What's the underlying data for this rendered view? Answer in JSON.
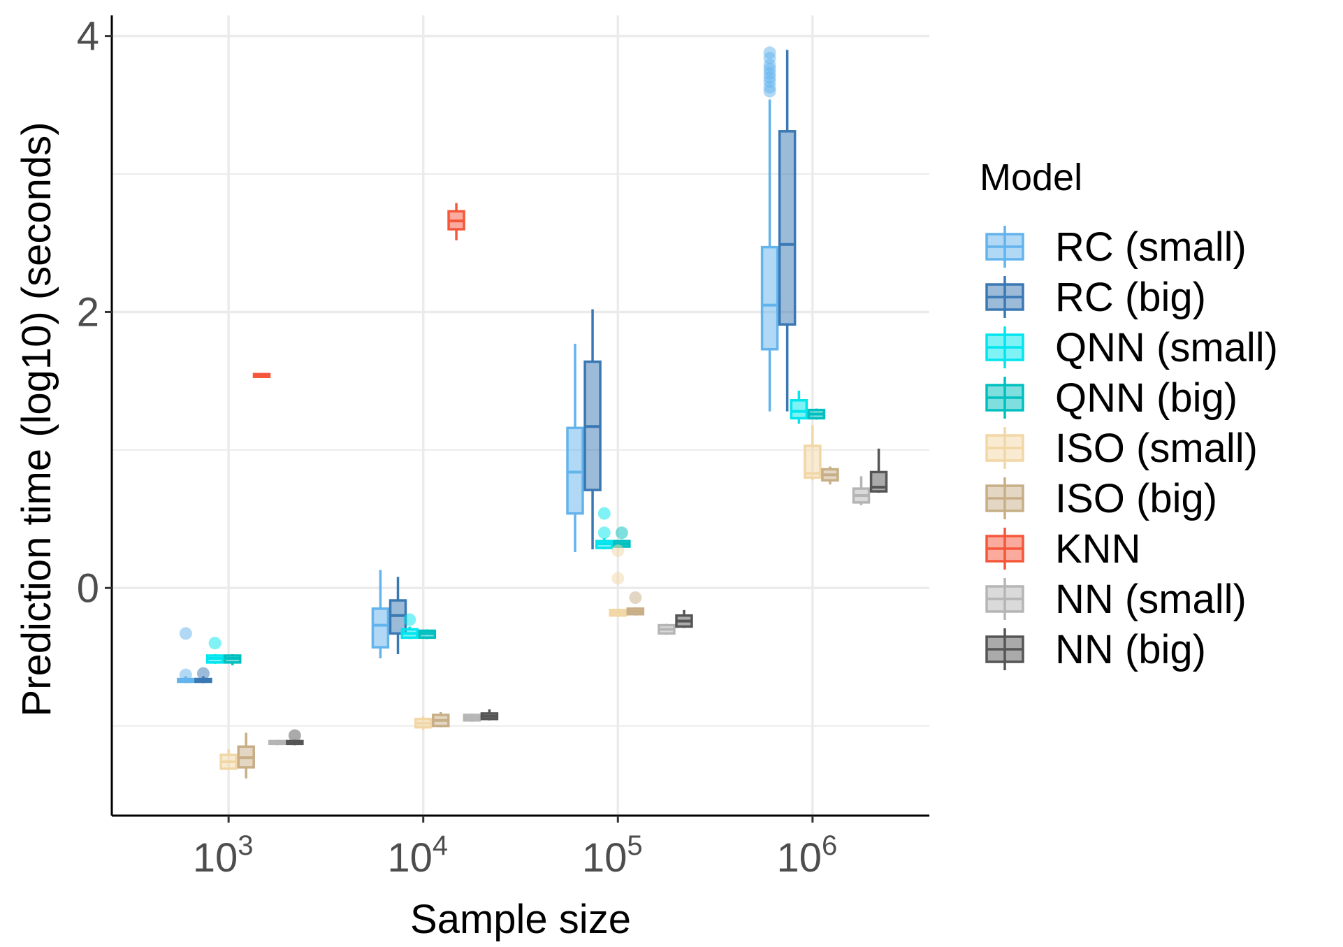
{
  "chart_data": {
    "type": "boxplot",
    "title": "",
    "xlabel": "Sample size",
    "ylabel": "Prediction time (log10) (seconds)",
    "x_scale": "log10",
    "x_ticks": [
      {
        "value": 1000,
        "base": "10",
        "exp": "3"
      },
      {
        "value": 10000,
        "base": "10",
        "exp": "4"
      },
      {
        "value": 100000,
        "base": "10",
        "exp": "5"
      },
      {
        "value": 1000000,
        "base": "10",
        "exp": "6"
      }
    ],
    "xlim_log10": [
      2.4,
      6.6
    ],
    "ylim": [
      -1.65,
      4.15
    ],
    "y_ticks": [
      {
        "value": 0,
        "label": "0"
      },
      {
        "value": 2,
        "label": "2"
      },
      {
        "value": 4,
        "label": "4"
      }
    ],
    "y_minor_gridlines": [
      -1,
      1,
      3
    ],
    "grid": true,
    "legend": {
      "title": "Model",
      "position": "right",
      "entries": [
        {
          "name": "RC (small)",
          "color": "#63B3ED"
        },
        {
          "name": "RC (big)",
          "color": "#3A78B4"
        },
        {
          "name": "QNN (small)",
          "color": "#00E5EE"
        },
        {
          "name": "QNN (big)",
          "color": "#00BFBF"
        },
        {
          "name": "ISO (small)",
          "color": "#F2D7A6"
        },
        {
          "name": "ISO (big)",
          "color": "#C7AE86"
        },
        {
          "name": "KNN",
          "color": "#F5573B"
        },
        {
          "name": "NN (small)",
          "color": "#B5B5B5"
        },
        {
          "name": "NN (big)",
          "color": "#555555"
        }
      ]
    },
    "boxes": [
      {
        "model": "RC (small)",
        "x_log10": 2.78,
        "q1": -0.68,
        "median": -0.67,
        "q3": -0.66,
        "whisker_low": -0.69,
        "whisker_high": -0.64,
        "outliers": [
          -0.33,
          -0.63
        ]
      },
      {
        "model": "RC (big)",
        "x_log10": 2.87,
        "q1": -0.68,
        "median": -0.67,
        "q3": -0.66,
        "whisker_low": -0.69,
        "whisker_high": -0.64,
        "outliers": [
          -0.62
        ]
      },
      {
        "model": "QNN (small)",
        "x_log10": 2.93,
        "q1": -0.54,
        "median": -0.51,
        "q3": -0.49,
        "whisker_low": -0.55,
        "whisker_high": -0.48,
        "outliers": [
          -0.4
        ]
      },
      {
        "model": "QNN (big)",
        "x_log10": 3.02,
        "q1": -0.54,
        "median": -0.51,
        "q3": -0.49,
        "whisker_low": -0.56,
        "whisker_high": -0.48,
        "outliers": []
      },
      {
        "model": "ISO (small)",
        "x_log10": 3.0,
        "q1": -1.31,
        "median": -1.26,
        "q3": -1.21,
        "whisker_low": -1.32,
        "whisker_high": -1.17,
        "outliers": []
      },
      {
        "model": "ISO (big)",
        "x_log10": 3.09,
        "q1": -1.3,
        "median": -1.23,
        "q3": -1.15,
        "whisker_low": -1.38,
        "whisker_high": -1.05,
        "outliers": []
      },
      {
        "model": "KNN",
        "x_log10": 3.17,
        "q1": 1.53,
        "median": 1.54,
        "q3": 1.55,
        "whisker_low": 1.53,
        "whisker_high": 1.55,
        "outliers": []
      },
      {
        "model": "NN (small)",
        "x_log10": 3.25,
        "q1": -1.13,
        "median": -1.12,
        "q3": -1.11,
        "whisker_low": -1.14,
        "whisker_high": -1.1,
        "outliers": []
      },
      {
        "model": "NN (big)",
        "x_log10": 3.34,
        "q1": -1.13,
        "median": -1.12,
        "q3": -1.11,
        "whisker_low": -1.14,
        "whisker_high": -1.1,
        "outliers": [
          -1.07
        ]
      },
      {
        "model": "RC (small)",
        "x_log10": 3.78,
        "q1": -0.43,
        "median": -0.27,
        "q3": -0.15,
        "whisker_low": -0.51,
        "whisker_high": 0.13,
        "outliers": []
      },
      {
        "model": "RC (big)",
        "x_log10": 3.87,
        "q1": -0.33,
        "median": -0.2,
        "q3": -0.09,
        "whisker_low": -0.48,
        "whisker_high": 0.08,
        "outliers": []
      },
      {
        "model": "QNN (small)",
        "x_log10": 3.93,
        "q1": -0.36,
        "median": -0.33,
        "q3": -0.3,
        "whisker_low": -0.37,
        "whisker_high": -0.28,
        "outliers": [
          -0.23
        ]
      },
      {
        "model": "QNN (big)",
        "x_log10": 4.02,
        "q1": -0.36,
        "median": -0.33,
        "q3": -0.31,
        "whisker_low": -0.37,
        "whisker_high": -0.3,
        "outliers": []
      },
      {
        "model": "ISO (small)",
        "x_log10": 4.0,
        "q1": -1.01,
        "median": -0.98,
        "q3": -0.95,
        "whisker_low": -1.03,
        "whisker_high": -0.93,
        "outliers": []
      },
      {
        "model": "ISO (big)",
        "x_log10": 4.09,
        "q1": -1.0,
        "median": -0.96,
        "q3": -0.92,
        "whisker_low": -1.01,
        "whisker_high": -0.9,
        "outliers": []
      },
      {
        "model": "KNN",
        "x_log10": 4.17,
        "q1": 2.6,
        "median": 2.66,
        "q3": 2.73,
        "whisker_low": 2.52,
        "whisker_high": 2.79,
        "outliers": []
      },
      {
        "model": "NN (small)",
        "x_log10": 4.25,
        "q1": -0.96,
        "median": -0.94,
        "q3": -0.92,
        "whisker_low": -0.97,
        "whisker_high": -0.91,
        "outliers": []
      },
      {
        "model": "NN (big)",
        "x_log10": 4.34,
        "q1": -0.95,
        "median": -0.93,
        "q3": -0.91,
        "whisker_low": -0.96,
        "whisker_high": -0.88,
        "outliers": []
      },
      {
        "model": "RC (small)",
        "x_log10": 4.78,
        "q1": 0.54,
        "median": 0.84,
        "q3": 1.16,
        "whisker_low": 0.26,
        "whisker_high": 1.77,
        "outliers": []
      },
      {
        "model": "RC (big)",
        "x_log10": 4.87,
        "q1": 0.71,
        "median": 1.17,
        "q3": 1.64,
        "whisker_low": 0.28,
        "whisker_high": 2.02,
        "outliers": []
      },
      {
        "model": "QNN (small)",
        "x_log10": 4.93,
        "q1": 0.29,
        "median": 0.32,
        "q3": 0.34,
        "whisker_low": 0.28,
        "whisker_high": 0.36,
        "outliers": [
          0.54,
          0.4
        ]
      },
      {
        "model": "QNN (big)",
        "x_log10": 5.02,
        "q1": 0.3,
        "median": 0.32,
        "q3": 0.34,
        "whisker_low": 0.29,
        "whisker_high": 0.35,
        "outliers": [
          0.4
        ]
      },
      {
        "model": "ISO (small)",
        "x_log10": 5.0,
        "q1": -0.2,
        "median": -0.18,
        "q3": -0.16,
        "whisker_low": -0.21,
        "whisker_high": -0.15,
        "outliers": [
          0.27,
          0.07
        ]
      },
      {
        "model": "ISO (big)",
        "x_log10": 5.09,
        "q1": -0.19,
        "median": -0.17,
        "q3": -0.15,
        "whisker_low": -0.2,
        "whisker_high": -0.14,
        "outliers": [
          -0.07
        ]
      },
      {
        "model": "NN (small)",
        "x_log10": 5.25,
        "q1": -0.33,
        "median": -0.3,
        "q3": -0.27,
        "whisker_low": -0.34,
        "whisker_high": -0.26,
        "outliers": []
      },
      {
        "model": "NN (big)",
        "x_log10": 5.34,
        "q1": -0.28,
        "median": -0.24,
        "q3": -0.2,
        "whisker_low": -0.29,
        "whisker_high": -0.16,
        "outliers": []
      },
      {
        "model": "RC (small)",
        "x_log10": 5.78,
        "q1": 1.73,
        "median": 2.05,
        "q3": 2.47,
        "whisker_low": 1.28,
        "whisker_high": 3.54,
        "outliers": [
          3.6,
          3.63,
          3.67,
          3.7,
          3.73,
          3.76,
          3.79,
          3.84,
          3.88
        ]
      },
      {
        "model": "RC (big)",
        "x_log10": 5.87,
        "q1": 1.91,
        "median": 2.49,
        "q3": 3.31,
        "whisker_low": 1.28,
        "whisker_high": 3.9,
        "outliers": []
      },
      {
        "model": "QNN (small)",
        "x_log10": 5.93,
        "q1": 1.23,
        "median": 1.28,
        "q3": 1.36,
        "whisker_low": 1.19,
        "whisker_high": 1.43,
        "outliers": []
      },
      {
        "model": "QNN (big)",
        "x_log10": 6.02,
        "q1": 1.23,
        "median": 1.26,
        "q3": 1.29,
        "whisker_low": 1.22,
        "whisker_high": 1.3,
        "outliers": []
      },
      {
        "model": "ISO (small)",
        "x_log10": 6.0,
        "q1": 0.8,
        "median": 0.83,
        "q3": 1.03,
        "whisker_low": 0.78,
        "whisker_high": 1.18,
        "outliers": []
      },
      {
        "model": "ISO (big)",
        "x_log10": 6.09,
        "q1": 0.78,
        "median": 0.82,
        "q3": 0.86,
        "whisker_low": 0.75,
        "whisker_high": 0.88,
        "outliers": []
      },
      {
        "model": "NN (small)",
        "x_log10": 6.25,
        "q1": 0.62,
        "median": 0.67,
        "q3": 0.72,
        "whisker_low": 0.6,
        "whisker_high": 0.81,
        "outliers": []
      },
      {
        "model": "NN (big)",
        "x_log10": 6.34,
        "q1": 0.7,
        "median": 0.73,
        "q3": 0.84,
        "whisker_low": 0.69,
        "whisker_high": 1.01,
        "outliers": []
      }
    ]
  }
}
